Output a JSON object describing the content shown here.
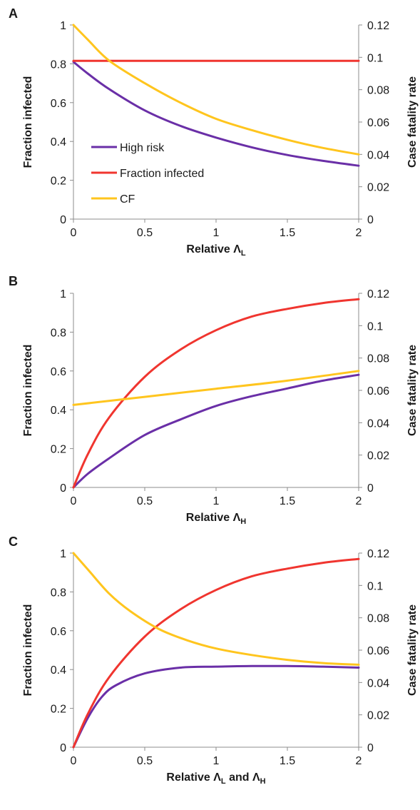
{
  "chart_data": [
    {
      "type": "line",
      "panel_label": "A",
      "xlabel": "Relative Λ",
      "xlabel_sub": "L",
      "xlabel_sub2": "",
      "ylabel": "Fraction infected",
      "y2label": "Case fatality rate",
      "xlim": [
        0,
        2
      ],
      "ylim": [
        0,
        1
      ],
      "y2lim": [
        0,
        0.12
      ],
      "xticks": [
        "0",
        "0.5",
        "1",
        "1.5",
        "2"
      ],
      "yticks": [
        "0",
        "0.2",
        "0.4",
        "0.6",
        "0.8",
        "1"
      ],
      "y2ticks": [
        "0",
        "0.02",
        "0.04",
        "0.06",
        "0.08",
        "0.1",
        "0.12"
      ],
      "grid": false,
      "legend": {
        "placement": "lower-left",
        "entries": [
          "High risk",
          "Fraction infected",
          "CF"
        ]
      },
      "series": [
        {
          "name": "High risk",
          "color": "#6a2fa7",
          "axis": "left",
          "x": [
            0,
            0.1,
            0.25,
            0.5,
            0.75,
            1,
            1.25,
            1.5,
            1.75,
            2
          ],
          "y": [
            0.81,
            0.75,
            0.67,
            0.56,
            0.48,
            0.42,
            0.37,
            0.33,
            0.3,
            0.275
          ]
        },
        {
          "name": "Fraction infected",
          "color": "#f0352f",
          "axis": "left",
          "x": [
            0,
            2
          ],
          "y": [
            0.815,
            0.815
          ]
        },
        {
          "name": "CF",
          "color": "#ffc51e",
          "axis": "right",
          "x": [
            0,
            0.1,
            0.25,
            0.5,
            0.75,
            1,
            1.25,
            1.5,
            1.75,
            2
          ],
          "y": [
            0.12,
            0.111,
            0.098,
            0.084,
            0.072,
            0.062,
            0.055,
            0.049,
            0.044,
            0.04
          ]
        }
      ]
    },
    {
      "type": "line",
      "panel_label": "B",
      "xlabel": "Relative Λ",
      "xlabel_sub": "H",
      "xlabel_sub2": "",
      "ylabel": "Fraction infected",
      "y2label": "Case fatality rate",
      "xlim": [
        0,
        2
      ],
      "ylim": [
        0,
        1
      ],
      "y2lim": [
        0,
        0.12
      ],
      "xticks": [
        "0",
        "0.5",
        "1",
        "1.5",
        "2"
      ],
      "yticks": [
        "0",
        "0.2",
        "0.4",
        "0.6",
        "0.8",
        "1"
      ],
      "y2ticks": [
        "0",
        "0.02",
        "0.04",
        "0.06",
        "0.08",
        "0.1",
        "0.12"
      ],
      "grid": false,
      "series": [
        {
          "name": "High risk",
          "color": "#6a2fa7",
          "axis": "left",
          "x": [
            0,
            0.1,
            0.25,
            0.5,
            0.75,
            1,
            1.25,
            1.5,
            1.75,
            2
          ],
          "y": [
            0,
            0.07,
            0.15,
            0.27,
            0.35,
            0.42,
            0.47,
            0.51,
            0.55,
            0.58
          ]
        },
        {
          "name": "Fraction infected",
          "color": "#f0352f",
          "axis": "left",
          "x": [
            0,
            0.1,
            0.25,
            0.5,
            0.75,
            1,
            1.25,
            1.5,
            1.75,
            2
          ],
          "y": [
            0,
            0.17,
            0.36,
            0.57,
            0.71,
            0.81,
            0.88,
            0.92,
            0.95,
            0.97
          ]
        },
        {
          "name": "CF",
          "color": "#ffc51e",
          "axis": "right",
          "x": [
            0,
            0.5,
            1,
            1.5,
            2
          ],
          "y": [
            0.051,
            0.056,
            0.061,
            0.066,
            0.072
          ]
        }
      ]
    },
    {
      "type": "line",
      "panel_label": "C",
      "xlabel": "Relative Λ",
      "xlabel_sub": "L",
      "xlabel_sub2": "H",
      "xlabel_mid": " and Λ",
      "ylabel": "Fraction infected",
      "y2label": "Case fatality rate",
      "xlim": [
        0,
        2
      ],
      "ylim": [
        0,
        1
      ],
      "y2lim": [
        0,
        0.12
      ],
      "xticks": [
        "0",
        "0.5",
        "1",
        "1.5",
        "2"
      ],
      "yticks": [
        "0",
        "0.2",
        "0.4",
        "0.6",
        "0.8",
        "1"
      ],
      "y2ticks": [
        "0",
        "0.02",
        "0.04",
        "0.06",
        "0.08",
        "0.1",
        "0.12"
      ],
      "grid": false,
      "series": [
        {
          "name": "High risk",
          "color": "#6a2fa7",
          "axis": "left",
          "x": [
            0,
            0.1,
            0.2,
            0.3,
            0.5,
            0.75,
            1,
            1.25,
            1.5,
            1.75,
            2
          ],
          "y": [
            0,
            0.15,
            0.26,
            0.32,
            0.38,
            0.41,
            0.415,
            0.418,
            0.418,
            0.415,
            0.41
          ]
        },
        {
          "name": "Fraction infected",
          "color": "#f0352f",
          "axis": "left",
          "x": [
            0,
            0.1,
            0.25,
            0.5,
            0.75,
            1,
            1.25,
            1.5,
            1.75,
            2
          ],
          "y": [
            0,
            0.17,
            0.36,
            0.57,
            0.71,
            0.81,
            0.88,
            0.92,
            0.95,
            0.97
          ]
        },
        {
          "name": "CF",
          "color": "#ffc51e",
          "axis": "right",
          "x": [
            0,
            0.1,
            0.25,
            0.4,
            0.6,
            0.8,
            1,
            1.25,
            1.5,
            1.75,
            2
          ],
          "y": [
            0.12,
            0.11,
            0.095,
            0.084,
            0.073,
            0.066,
            0.061,
            0.057,
            0.054,
            0.052,
            0.051
          ]
        }
      ]
    }
  ]
}
